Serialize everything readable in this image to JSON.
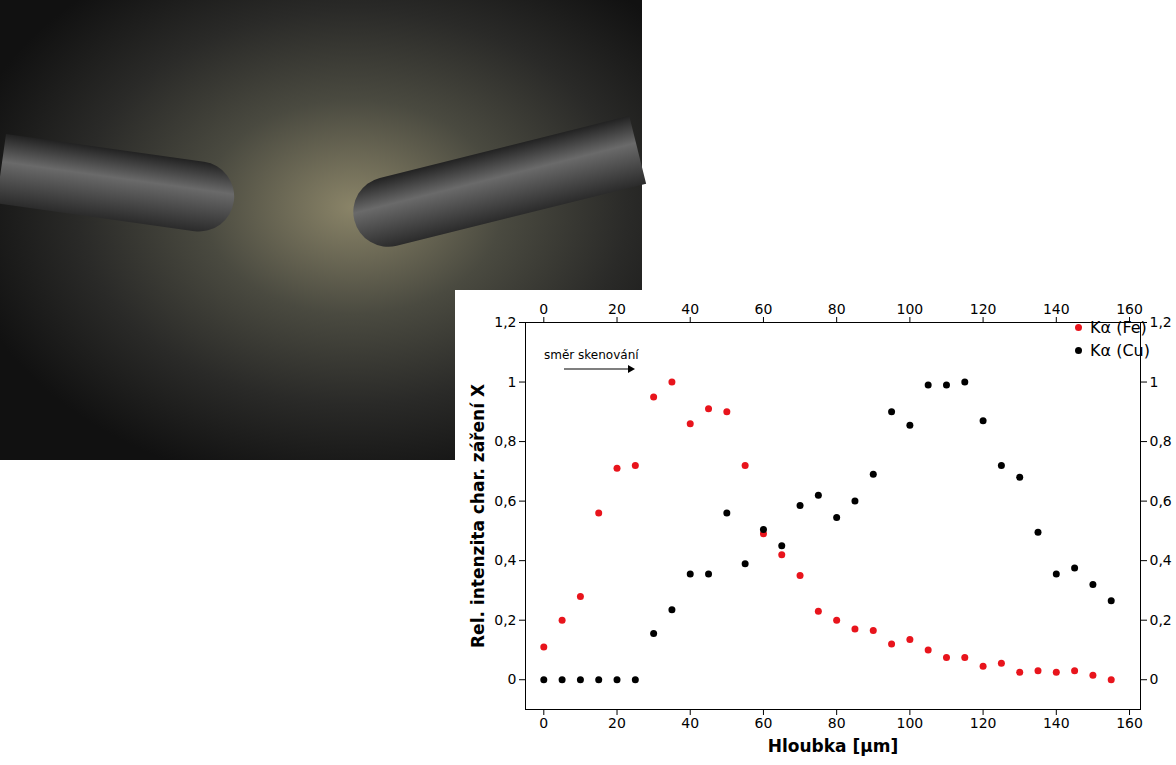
{
  "chart_data": {
    "type": "scatter",
    "x_label": "Hloubka [µm]",
    "y_label": "Rel. intenzita char. záření X",
    "annotations": [
      "směr skenování"
    ],
    "x": [
      0,
      5,
      10,
      15,
      20,
      25,
      30,
      35,
      40,
      45,
      50,
      55,
      60,
      65,
      70,
      75,
      80,
      85,
      90,
      95,
      100,
      105,
      110,
      115,
      120,
      125,
      130,
      135,
      140,
      145,
      150,
      155
    ],
    "series": [
      {
        "name": "Kα (Fe)",
        "color": "#e8141c",
        "marker": "circle",
        "values": [
          0.11,
          0.2,
          0.28,
          0.56,
          0.71,
          0.72,
          0.95,
          1.0,
          0.86,
          0.91,
          0.9,
          0.72,
          0.49,
          0.42,
          0.35,
          0.23,
          0.2,
          0.17,
          0.165,
          0.12,
          0.135,
          0.1,
          0.075,
          0.075,
          0.045,
          0.055,
          0.025,
          0.03,
          0.025,
          0.03,
          0.015,
          0.0
        ]
      },
      {
        "name": "Kα (Cu)",
        "color": "#000000",
        "marker": "circle",
        "values": [
          0,
          0,
          0,
          0,
          0,
          0,
          0.155,
          0.235,
          0.355,
          0.355,
          0.56,
          0.39,
          0.505,
          0.45,
          0.585,
          0.62,
          0.545,
          0.6,
          0.69,
          0.9,
          0.855,
          0.99,
          0.99,
          1.0,
          0.87,
          0.72,
          0.68,
          0.495,
          0.355,
          0.375,
          0.32,
          0.265
        ]
      }
    ],
    "xlim": [
      -5,
      163
    ],
    "xticks": [
      0,
      20,
      40,
      60,
      80,
      100,
      120,
      140,
      160
    ],
    "ylim": [
      -0.1,
      1.2
    ],
    "yticks": [
      0,
      {
        "value": 0.2,
        "label": "0,2"
      },
      {
        "value": 0.4,
        "label": "0,4"
      },
      {
        "value": 0.6,
        "label": "0,6"
      },
      {
        "value": 0.8,
        "label": "0,8"
      },
      1,
      {
        "value": 1.2,
        "label": "1,2"
      }
    ],
    "grid": false,
    "legend": "top-right"
  }
}
